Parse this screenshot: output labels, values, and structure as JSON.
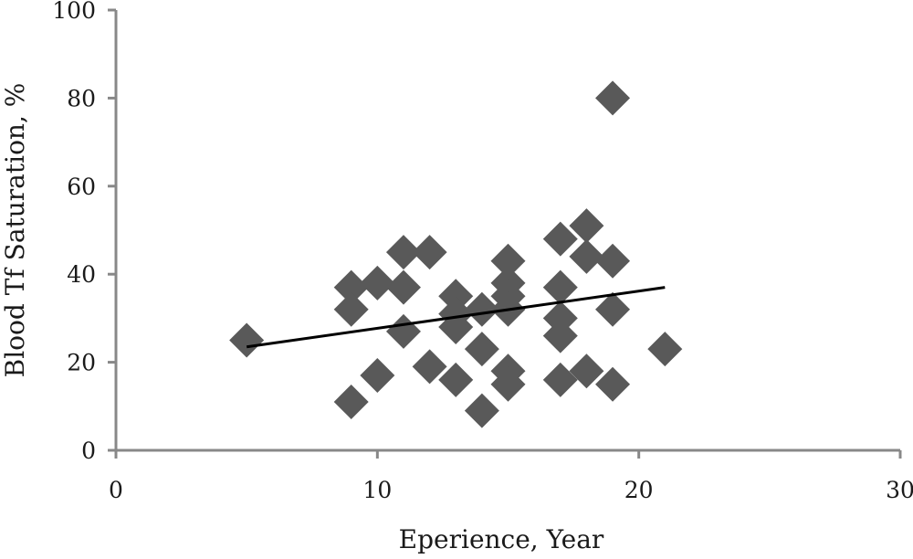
{
  "chart_data": {
    "type": "scatter",
    "xlabel": "Eperience, Year",
    "ylabel": "Blood Tf Saturation, %",
    "xlim": [
      0,
      30
    ],
    "ylim": [
      0,
      100
    ],
    "xticks": [
      "0",
      "10",
      "20",
      "30"
    ],
    "yticks": [
      "0",
      "20",
      "40",
      "60",
      "80",
      "100"
    ],
    "grid": false,
    "legend": "none",
    "marker_color": "#595959",
    "marker_shape": "diamond",
    "trendline": {
      "x": [
        5,
        21
      ],
      "y": [
        23.5,
        37
      ],
      "color": "#000000"
    },
    "points": [
      {
        "x": 5,
        "y": 25
      },
      {
        "x": 9,
        "y": 37
      },
      {
        "x": 9,
        "y": 32
      },
      {
        "x": 9,
        "y": 11
      },
      {
        "x": 10,
        "y": 38
      },
      {
        "x": 10,
        "y": 17
      },
      {
        "x": 11,
        "y": 45
      },
      {
        "x": 11,
        "y": 37
      },
      {
        "x": 11,
        "y": 27
      },
      {
        "x": 12,
        "y": 45
      },
      {
        "x": 12,
        "y": 19
      },
      {
        "x": 13,
        "y": 35
      },
      {
        "x": 13,
        "y": 31
      },
      {
        "x": 13,
        "y": 28
      },
      {
        "x": 13,
        "y": 16
      },
      {
        "x": 14,
        "y": 32
      },
      {
        "x": 14,
        "y": 23
      },
      {
        "x": 14,
        "y": 9
      },
      {
        "x": 15,
        "y": 43
      },
      {
        "x": 15,
        "y": 38
      },
      {
        "x": 15,
        "y": 35
      },
      {
        "x": 15,
        "y": 32
      },
      {
        "x": 15,
        "y": 18
      },
      {
        "x": 15,
        "y": 15
      },
      {
        "x": 17,
        "y": 48
      },
      {
        "x": 17,
        "y": 37
      },
      {
        "x": 17,
        "y": 30
      },
      {
        "x": 17,
        "y": 26
      },
      {
        "x": 17,
        "y": 16
      },
      {
        "x": 18,
        "y": 51
      },
      {
        "x": 18,
        "y": 44
      },
      {
        "x": 18,
        "y": 18
      },
      {
        "x": 19,
        "y": 80
      },
      {
        "x": 19,
        "y": 43
      },
      {
        "x": 19,
        "y": 32
      },
      {
        "x": 19,
        "y": 15
      },
      {
        "x": 21,
        "y": 23
      }
    ]
  }
}
